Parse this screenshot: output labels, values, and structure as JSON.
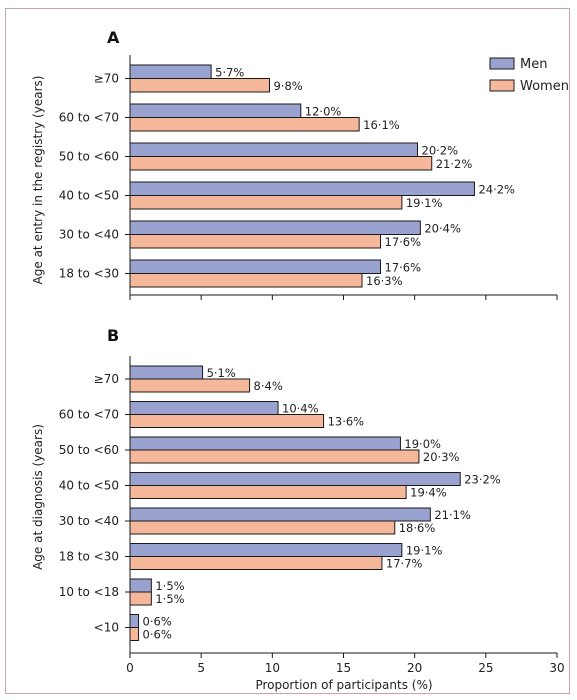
{
  "colors": {
    "men": "#9aa3d0",
    "women": "#f6b89a",
    "stroke": "#1a1a1a"
  },
  "chart_data": [
    {
      "type": "bar",
      "panel": "A",
      "orientation": "horizontal",
      "ylabel": "Age at entry in the registry (years)",
      "categories": [
        "≥70",
        "60 to <70",
        "50 to <60",
        "40 to <50",
        "30 to <40",
        "18 to <30"
      ],
      "series": [
        {
          "name": "Men",
          "values": [
            5.7,
            12.0,
            20.2,
            24.2,
            20.4,
            17.6
          ],
          "labels": [
            "5·7%",
            "12·0%",
            "20·2%",
            "24·2%",
            "20·4%",
            "17·6%"
          ]
        },
        {
          "name": "Women",
          "values": [
            9.8,
            16.1,
            21.2,
            19.1,
            17.6,
            16.3
          ],
          "labels": [
            "9·8%",
            "16·1%",
            "21·2%",
            "19·1%",
            "17·6%",
            "16·3%"
          ]
        }
      ],
      "xlim": [
        0,
        30
      ],
      "legend": "top-right"
    },
    {
      "type": "bar",
      "panel": "B",
      "orientation": "horizontal",
      "ylabel": "Age at diagnosis (years)",
      "xlabel": "Proportion of participants (%)",
      "categories": [
        "≥70",
        "60 to <70",
        "50 to <60",
        "40 to <50",
        "30 to <40",
        "18 to <30",
        "10 to <18",
        "<10"
      ],
      "series": [
        {
          "name": "Men",
          "values": [
            5.1,
            10.4,
            19.0,
            23.2,
            21.1,
            19.1,
            1.5,
            0.6
          ],
          "labels": [
            "5·1%",
            "10·4%",
            "19·0%",
            "23·2%",
            "21·1%",
            "19·1%",
            "1·5%",
            "0·6%"
          ]
        },
        {
          "name": "Women",
          "values": [
            8.4,
            13.6,
            20.3,
            19.4,
            18.6,
            17.7,
            1.5,
            0.6
          ],
          "labels": [
            "8·4%",
            "13·6%",
            "20·3%",
            "19·4%",
            "18·6%",
            "17·7%",
            "1·5%",
            "0·6%"
          ]
        }
      ],
      "xlim": [
        0,
        30
      ],
      "xticks": [
        "0",
        "5",
        "10",
        "15",
        "20",
        "25",
        "30"
      ]
    }
  ]
}
